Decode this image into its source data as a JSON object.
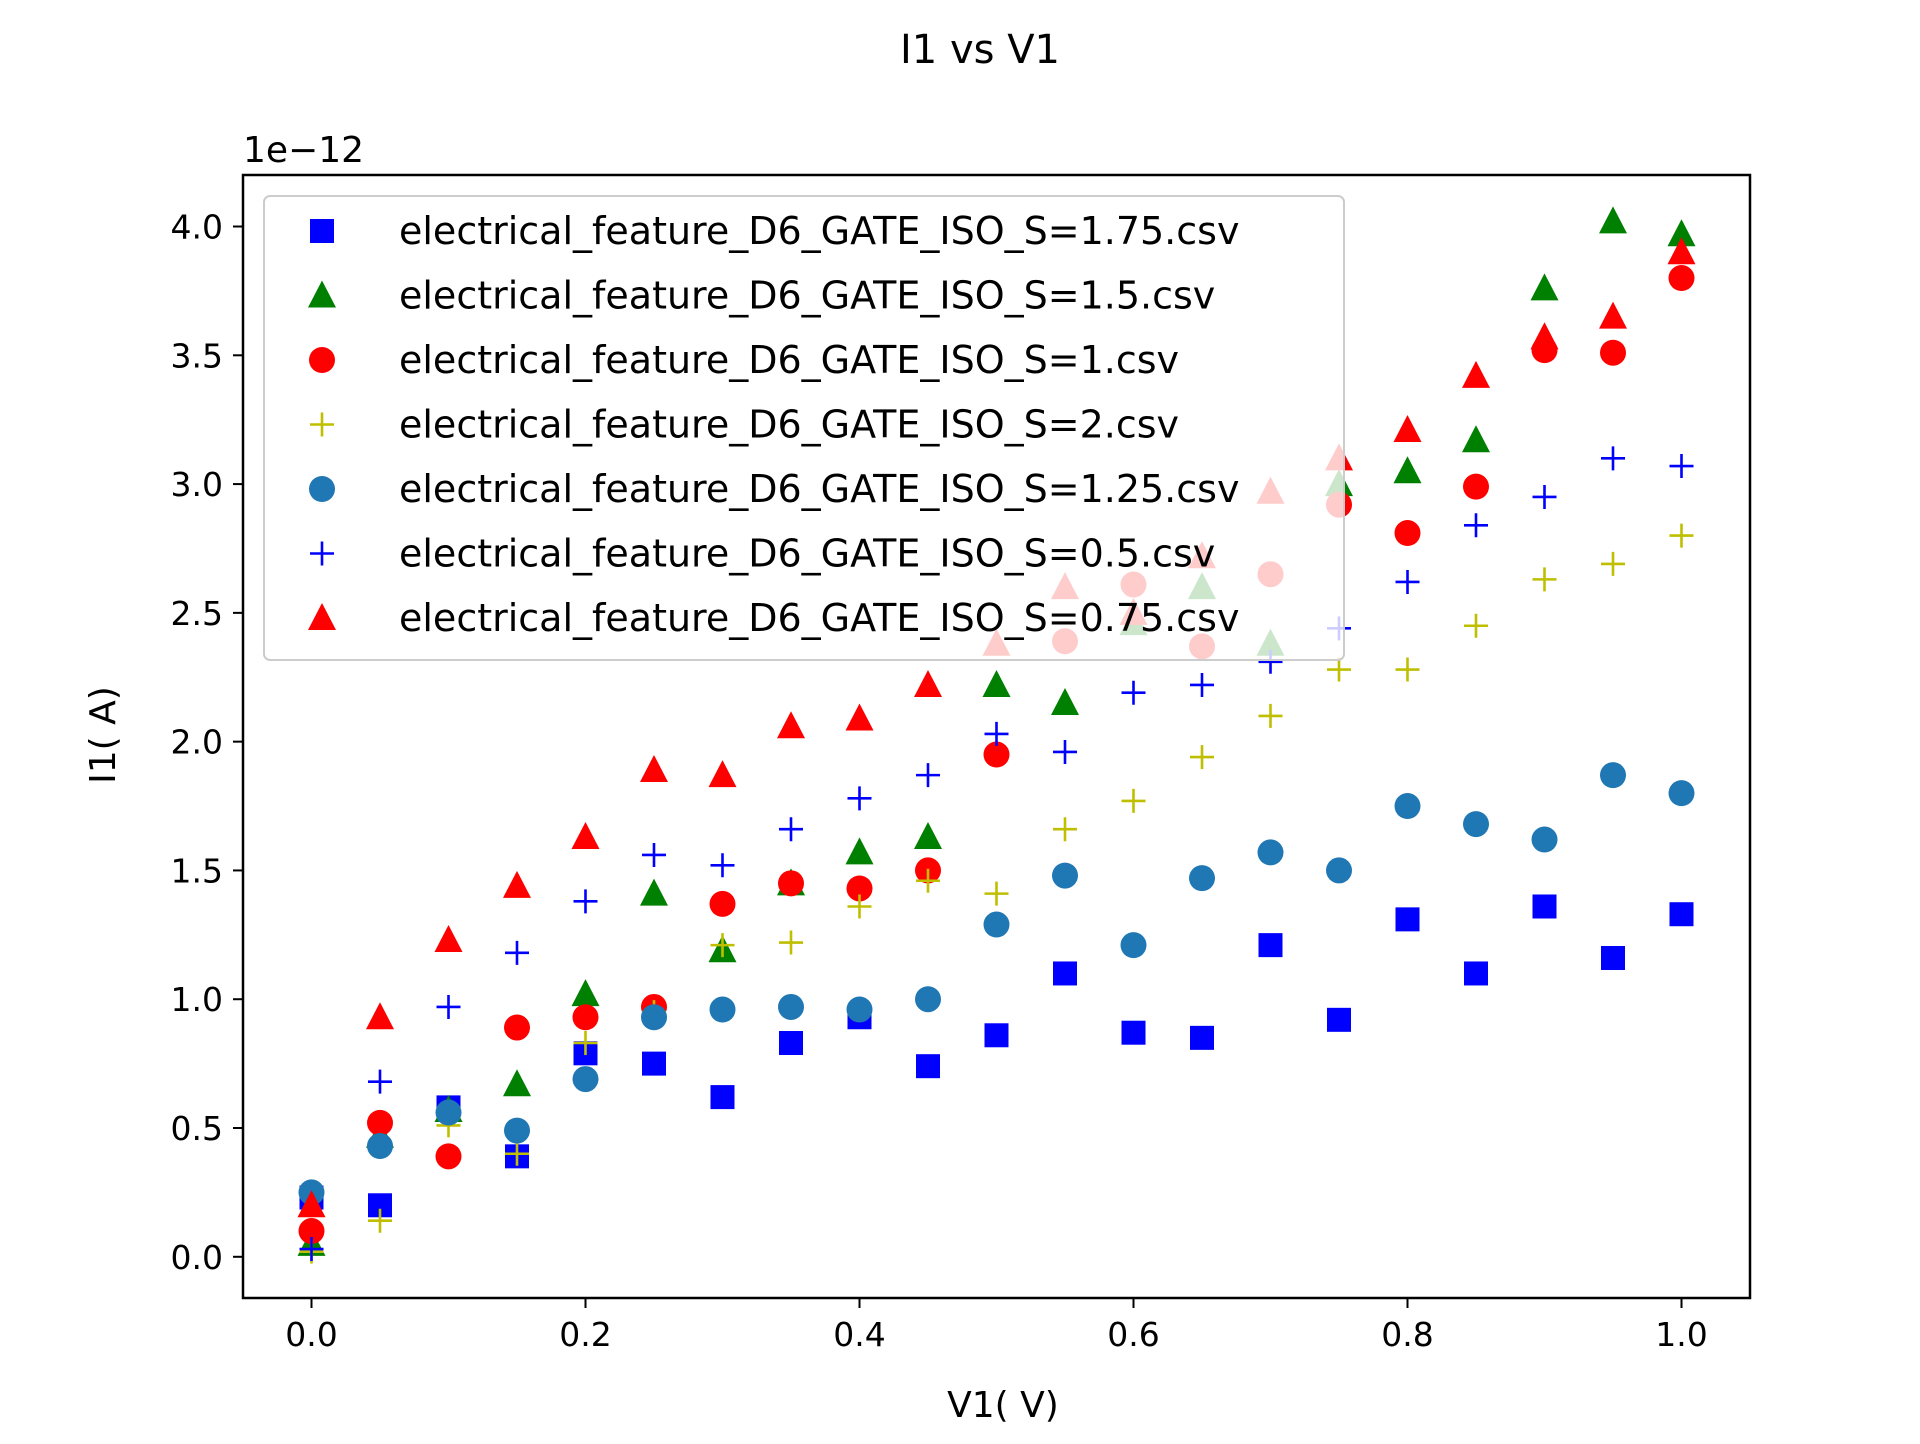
{
  "chart_data": {
    "type": "scatter",
    "title": "I1 vs V1",
    "xlabel": "V1( V)",
    "ylabel": "I1( A)",
    "y_offset_label": "1e−12",
    "y_scale_note": "y values are in units of 1e-12 A",
    "xlim": [
      -0.05,
      1.05
    ],
    "ylim": [
      -0.16,
      4.2
    ],
    "xticks": [
      0.0,
      0.2,
      0.4,
      0.6,
      0.8,
      1.0
    ],
    "xtick_labels": [
      "0.0",
      "0.2",
      "0.4",
      "0.6",
      "0.8",
      "1.0"
    ],
    "yticks": [
      0.0,
      0.5,
      1.0,
      1.5,
      2.0,
      2.5,
      3.0,
      3.5,
      4.0
    ],
    "ytick_labels": [
      "0.0",
      "0.5",
      "1.0",
      "1.5",
      "2.0",
      "2.5",
      "3.0",
      "3.5",
      "4.0"
    ],
    "grid": false,
    "legend_position": "upper-left",
    "x": [
      0.0,
      0.05,
      0.1,
      0.15,
      0.2,
      0.25,
      0.3,
      0.35,
      0.4,
      0.45,
      0.5,
      0.55,
      0.6,
      0.65,
      0.7,
      0.75,
      0.8,
      0.85,
      0.9,
      0.95,
      1.0
    ],
    "series": [
      {
        "name": "electrical_feature_D6_GATE_ISO_S=1.75.csv",
        "marker": "square",
        "color": "#0000ff",
        "values": [
          0.23,
          0.2,
          0.58,
          0.39,
          0.79,
          0.75,
          0.62,
          0.83,
          0.93,
          0.74,
          0.86,
          1.1,
          0.87,
          0.85,
          1.21,
          0.92,
          1.31,
          1.1,
          1.36,
          1.16,
          1.33
        ]
      },
      {
        "name": "electrical_feature_D6_GATE_ISO_S=1.5.csv",
        "marker": "triangle",
        "color": "#008000",
        "values": [
          0.05,
          0.47,
          0.57,
          0.67,
          1.02,
          1.41,
          1.19,
          1.45,
          1.57,
          1.63,
          2.22,
          2.15,
          2.46,
          2.6,
          2.38,
          3.0,
          3.05,
          3.17,
          3.76,
          4.02,
          3.97
        ]
      },
      {
        "name": "electrical_feature_D6_GATE_ISO_S=1.csv",
        "marker": "circle",
        "color": "#ff0000",
        "values": [
          0.1,
          0.52,
          0.39,
          0.89,
          0.93,
          0.97,
          1.37,
          1.45,
          1.43,
          1.5,
          1.95,
          2.39,
          2.61,
          2.37,
          2.65,
          2.92,
          2.81,
          2.99,
          3.52,
          3.51,
          3.8
        ]
      },
      {
        "name": "electrical_feature_D6_GATE_ISO_S=2.csv",
        "marker": "plus",
        "color": "#bfbf00",
        "values": [
          0.02,
          0.14,
          0.51,
          0.4,
          0.83,
          0.95,
          1.21,
          1.22,
          1.36,
          1.46,
          1.41,
          1.66,
          1.77,
          1.94,
          2.1,
          2.28,
          2.28,
          2.45,
          2.63,
          2.69,
          2.8
        ]
      },
      {
        "name": "electrical_feature_D6_GATE_ISO_S=1.25.csv",
        "marker": "circle",
        "color": "#1f77b4",
        "values": [
          0.25,
          0.43,
          0.56,
          0.49,
          0.69,
          0.93,
          0.96,
          0.97,
          0.96,
          1.0,
          1.29,
          1.48,
          1.21,
          1.47,
          1.57,
          1.5,
          1.75,
          1.68,
          1.62,
          1.87,
          1.8
        ]
      },
      {
        "name": "electrical_feature_D6_GATE_ISO_S=0.5.csv",
        "marker": "plus",
        "color": "#0000ff",
        "values": [
          0.03,
          0.68,
          0.97,
          1.18,
          1.38,
          1.56,
          1.52,
          1.66,
          1.78,
          1.87,
          2.03,
          1.96,
          2.19,
          2.22,
          2.31,
          2.44,
          2.62,
          2.84,
          2.95,
          3.1,
          3.07
        ]
      },
      {
        "name": "electrical_feature_D6_GATE_ISO_S=0.75.csv",
        "marker": "triangle",
        "color": "#ff0000",
        "values": [
          0.2,
          0.93,
          1.23,
          1.44,
          1.63,
          1.89,
          1.87,
          2.06,
          2.09,
          2.22,
          2.38,
          2.6,
          2.5,
          2.72,
          2.97,
          3.1,
          3.21,
          3.42,
          3.57,
          3.65,
          3.9
        ]
      }
    ]
  }
}
